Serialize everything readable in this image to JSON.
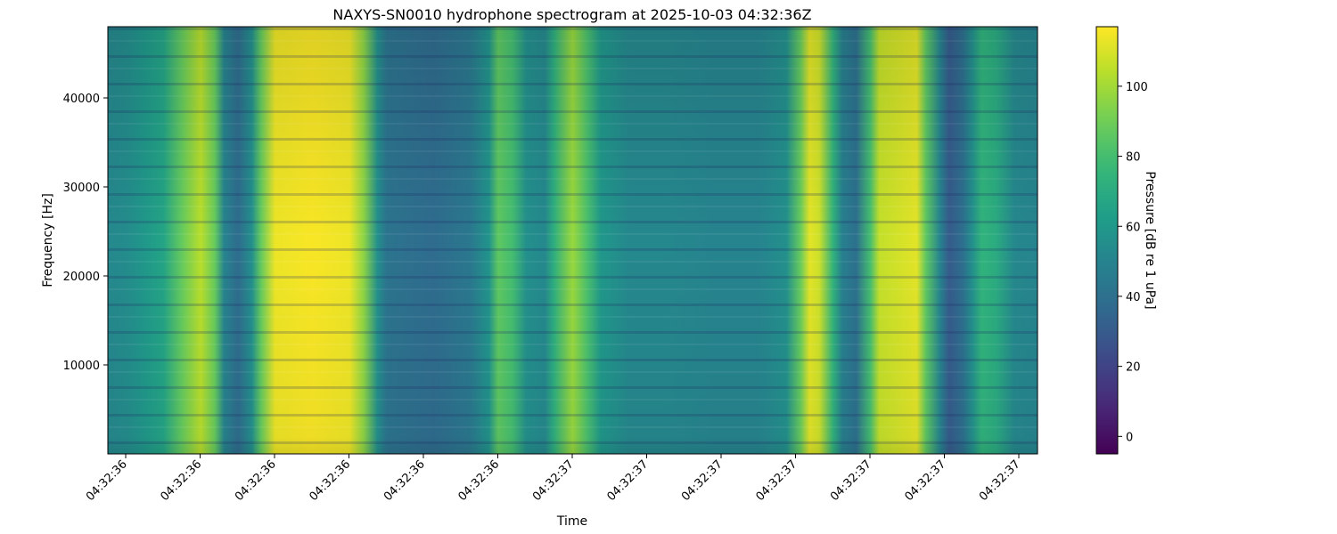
{
  "chart_data": {
    "type": "heatmap",
    "title": "NAXYS-SN0010 hydrophone spectrogram at 2025-10-03 04:32:36Z",
    "xlabel": "Time",
    "ylabel": "Frequency [Hz]",
    "colorbar_label": "Pressure [dB re 1 uPa]",
    "colormap": "viridis",
    "x_ticks": [
      "04:32:36",
      "04:32:36",
      "04:32:36",
      "04:32:36",
      "04:32:36",
      "04:32:36",
      "04:32:37",
      "04:32:37",
      "04:32:37",
      "04:32:37",
      "04:32:37",
      "04:32:37",
      "04:32:37"
    ],
    "y_ticks": [
      10000,
      20000,
      30000,
      40000
    ],
    "y_range": [
      0,
      48000
    ],
    "colorbar_ticks": [
      0,
      20,
      40,
      60,
      80,
      100
    ],
    "colorbar_range": [
      -5,
      117
    ],
    "time_bands": [
      {
        "t": 0.0,
        "db": 52
      },
      {
        "t": 0.02,
        "db": 54
      },
      {
        "t": 0.04,
        "db": 60
      },
      {
        "t": 0.06,
        "db": 66
      },
      {
        "t": 0.08,
        "db": 88
      },
      {
        "t": 0.1,
        "db": 104
      },
      {
        "t": 0.115,
        "db": 88
      },
      {
        "t": 0.125,
        "db": 50
      },
      {
        "t": 0.14,
        "db": 38
      },
      {
        "t": 0.155,
        "db": 56
      },
      {
        "t": 0.165,
        "db": 88
      },
      {
        "t": 0.18,
        "db": 114
      },
      {
        "t": 0.22,
        "db": 116
      },
      {
        "t": 0.26,
        "db": 114
      },
      {
        "t": 0.275,
        "db": 96
      },
      {
        "t": 0.29,
        "db": 56
      },
      {
        "t": 0.3,
        "db": 42
      },
      {
        "t": 0.35,
        "db": 38
      },
      {
        "t": 0.39,
        "db": 44
      },
      {
        "t": 0.41,
        "db": 58
      },
      {
        "t": 0.42,
        "db": 86
      },
      {
        "t": 0.435,
        "db": 80
      },
      {
        "t": 0.45,
        "db": 56
      },
      {
        "t": 0.47,
        "db": 52
      },
      {
        "t": 0.48,
        "db": 72
      },
      {
        "t": 0.5,
        "db": 98
      },
      {
        "t": 0.515,
        "db": 82
      },
      {
        "t": 0.53,
        "db": 60
      },
      {
        "t": 0.56,
        "db": 52
      },
      {
        "t": 0.6,
        "db": 52
      },
      {
        "t": 0.65,
        "db": 50
      },
      {
        "t": 0.7,
        "db": 50
      },
      {
        "t": 0.73,
        "db": 56
      },
      {
        "t": 0.745,
        "db": 88
      },
      {
        "t": 0.755,
        "db": 112
      },
      {
        "t": 0.765,
        "db": 108
      },
      {
        "t": 0.78,
        "db": 74
      },
      {
        "t": 0.79,
        "db": 48
      },
      {
        "t": 0.805,
        "db": 40
      },
      {
        "t": 0.82,
        "db": 80
      },
      {
        "t": 0.83,
        "db": 106
      },
      {
        "t": 0.87,
        "db": 112
      },
      {
        "t": 0.88,
        "db": 86
      },
      {
        "t": 0.895,
        "db": 50
      },
      {
        "t": 0.905,
        "db": 30
      },
      {
        "t": 0.92,
        "db": 40
      },
      {
        "t": 0.93,
        "db": 56
      },
      {
        "t": 0.94,
        "db": 74
      },
      {
        "t": 0.955,
        "db": 70
      },
      {
        "t": 0.975,
        "db": 52
      },
      {
        "t": 1.0,
        "db": 50
      }
    ]
  }
}
